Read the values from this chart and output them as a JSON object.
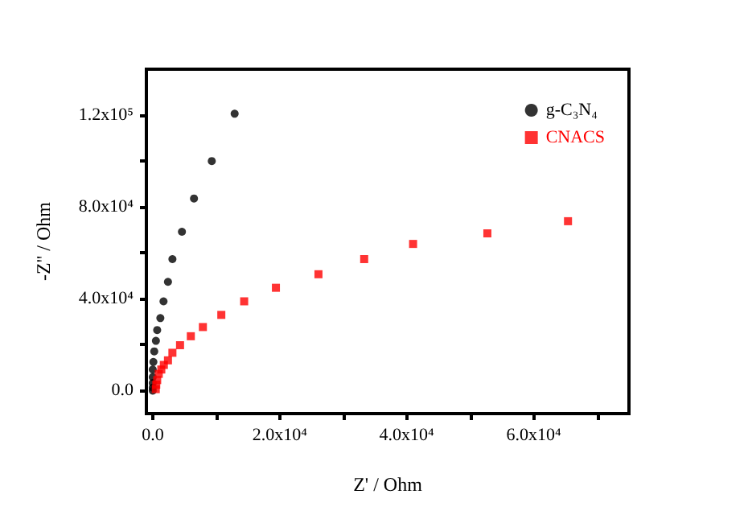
{
  "chart_data": {
    "type": "scatter",
    "xlabel": "Z' / Ohm",
    "ylabel": "-Z'' / Ohm",
    "xlim": [
      -1000,
      75000
    ],
    "ylim": [
      -10000,
      140000
    ],
    "xticks": [
      {
        "value": 0,
        "label": "0.0"
      },
      {
        "value": 10000,
        "label": null
      },
      {
        "value": 20000,
        "label": "2.0x10⁴"
      },
      {
        "value": 30000,
        "label": null
      },
      {
        "value": 40000,
        "label": "4.0x10⁴"
      },
      {
        "value": 50000,
        "label": null
      },
      {
        "value": 60000,
        "label": "6.0x10⁴"
      },
      {
        "value": 70000,
        "label": null
      }
    ],
    "yticks": [
      {
        "value": 0,
        "label": "0.0"
      },
      {
        "value": 20000,
        "label": null
      },
      {
        "value": 40000,
        "label": "4.0x10⁴"
      },
      {
        "value": 60000,
        "label": null
      },
      {
        "value": 80000,
        "label": "8.0x10⁴"
      },
      {
        "value": 100000,
        "label": null
      },
      {
        "value": 120000,
        "label": "1.2x10⁵"
      }
    ],
    "grid": false,
    "legend": "top right",
    "series": [
      {
        "name": "g-C₃N₄",
        "color": "#000000",
        "marker": "circle",
        "x": [
          0,
          0,
          0,
          0,
          0,
          100,
          240,
          500,
          700,
          1200,
          1700,
          2400,
          3100,
          4600,
          6500,
          9300,
          12900
        ],
        "values": [
          0,
          1300,
          3300,
          5900,
          9200,
          12500,
          17100,
          21700,
          26400,
          31600,
          38900,
          47400,
          57300,
          69200,
          83700,
          100000,
          120600
        ]
      },
      {
        "name": "CNACS",
        "color": "#ff0000",
        "marker": "square",
        "x": [
          480,
          550,
          700,
          950,
          1350,
          1750,
          2400,
          3100,
          4300,
          6000,
          7900,
          10800,
          14400,
          19400,
          26100,
          33300,
          41000,
          52700,
          65400
        ],
        "values": [
          660,
          2600,
          4600,
          7300,
          9200,
          11200,
          13200,
          16500,
          19800,
          23700,
          27700,
          33000,
          38900,
          44800,
          50700,
          57300,
          63900,
          68500,
          73800
        ]
      }
    ]
  }
}
